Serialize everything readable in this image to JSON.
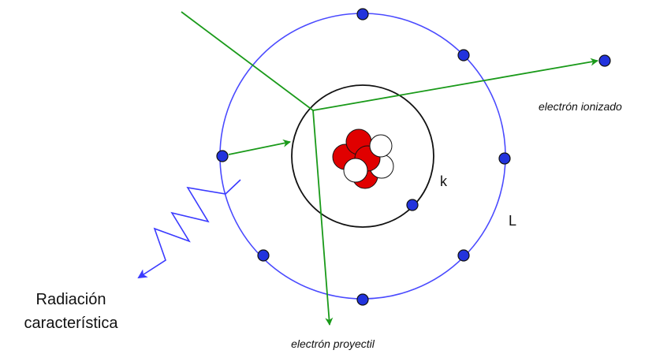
{
  "labels": {
    "ionized_electron": "electrón ionizado",
    "k_shell": "k",
    "l_shell": "L",
    "radiation": [
      "Radiación",
      "característica"
    ],
    "projectile_electron": "electrón proyectil"
  }
}
